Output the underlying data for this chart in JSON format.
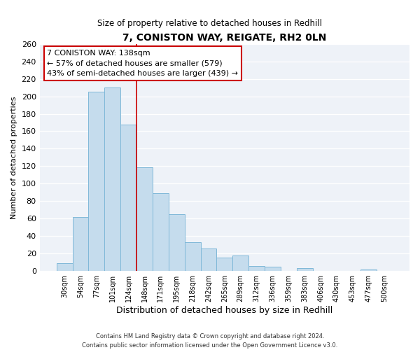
{
  "title": "7, CONISTON WAY, REIGATE, RH2 0LN",
  "subtitle": "Size of property relative to detached houses in Redhill",
  "xlabel": "Distribution of detached houses by size in Redhill",
  "ylabel": "Number of detached properties",
  "bar_color": "#c5dced",
  "bar_edge_color": "#7fb8d8",
  "background_color": "#eef2f8",
  "categories": [
    "30sqm",
    "54sqm",
    "77sqm",
    "101sqm",
    "124sqm",
    "148sqm",
    "171sqm",
    "195sqm",
    "218sqm",
    "242sqm",
    "265sqm",
    "289sqm",
    "312sqm",
    "336sqm",
    "359sqm",
    "383sqm",
    "406sqm",
    "430sqm",
    "453sqm",
    "477sqm",
    "500sqm"
  ],
  "values": [
    9,
    62,
    205,
    210,
    168,
    119,
    89,
    65,
    33,
    26,
    15,
    18,
    6,
    5,
    0,
    3,
    0,
    0,
    0,
    2,
    0
  ],
  "ylim": [
    0,
    260
  ],
  "yticks": [
    0,
    20,
    40,
    60,
    80,
    100,
    120,
    140,
    160,
    180,
    200,
    220,
    240,
    260
  ],
  "vline_x": 4.5,
  "vline_color": "#cc0000",
  "annotation_title": "7 CONISTON WAY: 138sqm",
  "annotation_line1": "← 57% of detached houses are smaller (579)",
  "annotation_line2": "43% of semi-detached houses are larger (439) →",
  "footer_line1": "Contains HM Land Registry data © Crown copyright and database right 2024.",
  "footer_line2": "Contains public sector information licensed under the Open Government Licence v3.0."
}
